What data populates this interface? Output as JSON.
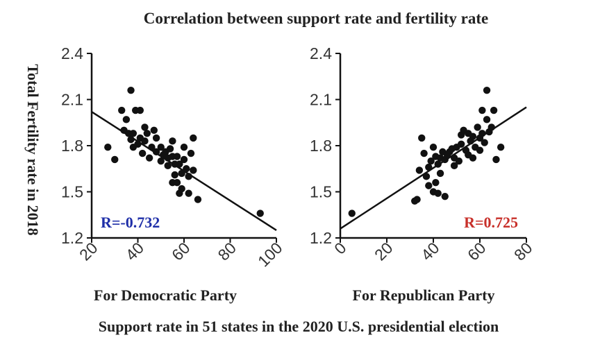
{
  "figure": {
    "title": "Correlation between support rate and fertility rate",
    "ylabel": "Total Fertility rate in 2018",
    "footer": "Support rate in 51 states in the 2020 U.S. presidential election"
  },
  "colors": {
    "democratic": "#1f2fa8",
    "republican": "#c8302a"
  },
  "chart_data": [
    {
      "type": "scatter",
      "xlabel": "For Democratic Party",
      "ylabel": "Total Fertility rate in 2018",
      "xlim": [
        20,
        100
      ],
      "ylim": [
        1.2,
        2.4
      ],
      "xticks": [
        "20",
        "40",
        "60",
        "80",
        "100"
      ],
      "yticks": [
        "1.2",
        "1.5",
        "1.8",
        "2.1",
        "2.4"
      ],
      "annotation": "R=-0.732",
      "annotation_color": "#1f2fa8",
      "trendline": [
        [
          20,
          2.02
        ],
        [
          100,
          1.25
        ]
      ],
      "points": [
        [
          27,
          1.79
        ],
        [
          30,
          1.71
        ],
        [
          33,
          2.03
        ],
        [
          34,
          1.9
        ],
        [
          35,
          1.97
        ],
        [
          36,
          1.88
        ],
        [
          37,
          2.16
        ],
        [
          37,
          1.84
        ],
        [
          38,
          1.88
        ],
        [
          38,
          1.79
        ],
        [
          39,
          2.03
        ],
        [
          40,
          1.81
        ],
        [
          41,
          2.03
        ],
        [
          41,
          1.85
        ],
        [
          42,
          1.75
        ],
        [
          43,
          1.92
        ],
        [
          43,
          1.83
        ],
        [
          44,
          1.88
        ],
        [
          45,
          1.72
        ],
        [
          46,
          1.79
        ],
        [
          47,
          1.9
        ],
        [
          48,
          1.85
        ],
        [
          48,
          1.76
        ],
        [
          50,
          1.79
        ],
        [
          50,
          1.7
        ],
        [
          51,
          1.74
        ],
        [
          52,
          1.76
        ],
        [
          53,
          1.67
        ],
        [
          53,
          1.72
        ],
        [
          54,
          1.78
        ],
        [
          55,
          1.83
        ],
        [
          55,
          1.73
        ],
        [
          55,
          1.56
        ],
        [
          56,
          1.68
        ],
        [
          56,
          1.61
        ],
        [
          57,
          1.73
        ],
        [
          57,
          1.56
        ],
        [
          58,
          1.68
        ],
        [
          58,
          1.49
        ],
        [
          59,
          1.62
        ],
        [
          59,
          1.52
        ],
        [
          60,
          1.79
        ],
        [
          60,
          1.71
        ],
        [
          61,
          1.65
        ],
        [
          62,
          1.6
        ],
        [
          62,
          1.49
        ],
        [
          63,
          1.75
        ],
        [
          64,
          1.85
        ],
        [
          64,
          1.64
        ],
        [
          66,
          1.45
        ],
        [
          93,
          1.36
        ]
      ]
    },
    {
      "type": "scatter",
      "xlabel": "For Republican Party",
      "ylabel": "Total Fertility rate in 2018",
      "xlim": [
        0,
        80
      ],
      "ylim": [
        1.2,
        2.4
      ],
      "xticks": [
        "0",
        "20",
        "40",
        "60",
        "80"
      ],
      "yticks": [
        "1.2",
        "1.5",
        "1.8",
        "2.1",
        "2.4"
      ],
      "annotation": "R=0.725",
      "annotation_color": "#c8302a",
      "trendline": [
        [
          0,
          1.26
        ],
        [
          80,
          2.05
        ]
      ],
      "points": [
        [
          5,
          1.36
        ],
        [
          32,
          1.44
        ],
        [
          33,
          1.45
        ],
        [
          34,
          1.64
        ],
        [
          35,
          1.85
        ],
        [
          36,
          1.75
        ],
        [
          37,
          1.6
        ],
        [
          38,
          1.66
        ],
        [
          38,
          1.54
        ],
        [
          39,
          1.7
        ],
        [
          40,
          1.79
        ],
        [
          40,
          1.5
        ],
        [
          41,
          1.73
        ],
        [
          41,
          1.56
        ],
        [
          42,
          1.68
        ],
        [
          42,
          1.49
        ],
        [
          43,
          1.62
        ],
        [
          43,
          1.72
        ],
        [
          44,
          1.76
        ],
        [
          45,
          1.47
        ],
        [
          45,
          1.71
        ],
        [
          46,
          1.74
        ],
        [
          47,
          1.76
        ],
        [
          48,
          1.78
        ],
        [
          49,
          1.72
        ],
        [
          49,
          1.67
        ],
        [
          50,
          1.79
        ],
        [
          51,
          1.7
        ],
        [
          52,
          1.81
        ],
        [
          52,
          1.87
        ],
        [
          53,
          1.9
        ],
        [
          54,
          1.77
        ],
        [
          55,
          1.88
        ],
        [
          55,
          1.74
        ],
        [
          56,
          1.83
        ],
        [
          57,
          1.86
        ],
        [
          57,
          1.72
        ],
        [
          58,
          1.79
        ],
        [
          59,
          1.92
        ],
        [
          60,
          1.85
        ],
        [
          60,
          1.77
        ],
        [
          61,
          2.03
        ],
        [
          61,
          1.88
        ],
        [
          62,
          1.82
        ],
        [
          63,
          2.16
        ],
        [
          63,
          1.97
        ],
        [
          64,
          1.89
        ],
        [
          65,
          1.92
        ],
        [
          66,
          2.03
        ],
        [
          67,
          1.71
        ],
        [
          69,
          1.79
        ]
      ]
    }
  ]
}
